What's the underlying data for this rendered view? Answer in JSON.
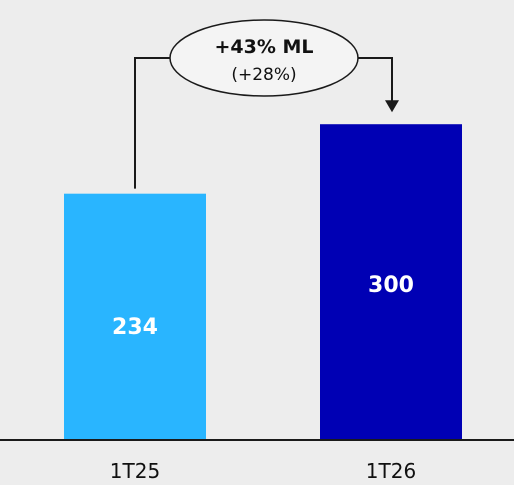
{
  "chart_data": {
    "type": "bar",
    "categories": [
      "1T25",
      "1T26"
    ],
    "values": [
      234,
      300
    ],
    "value_labels": [
      "234",
      "300"
    ],
    "title": "",
    "xlabel": "",
    "ylabel": "",
    "ylim": [
      0,
      380
    ],
    "grid": false,
    "legend": "none",
    "annotation": {
      "main": "+43% ML",
      "sub": "(+28%)"
    }
  },
  "colors": {
    "background": "#ededed",
    "bar_1": "#29b5ff",
    "bar_2": "#0000b4",
    "value_text": "#ffffff",
    "axis": "#1a1a1a",
    "text": "#111111",
    "ellipse_fill": "#f4f4f4"
  }
}
